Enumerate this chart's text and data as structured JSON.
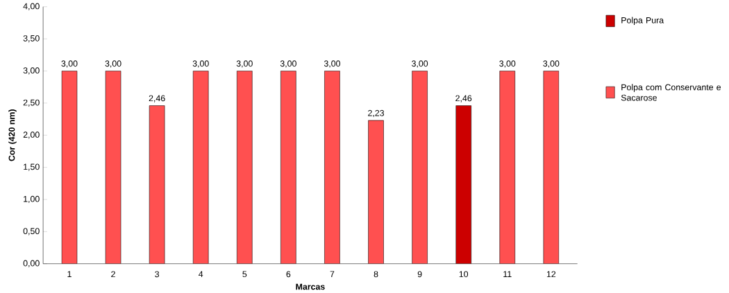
{
  "chart_data": {
    "type": "bar",
    "xlabel": "Marcas",
    "ylabel": "Cor (420 nm)",
    "categories": [
      "1",
      "2",
      "3",
      "4",
      "5",
      "6",
      "7",
      "8",
      "9",
      "10",
      "11",
      "12"
    ],
    "series": [
      {
        "name": "Polpa Pura",
        "color": "#cc0000",
        "values": [
          null,
          null,
          null,
          null,
          null,
          null,
          null,
          null,
          null,
          2.46,
          null,
          null
        ],
        "value_labels": [
          null,
          null,
          null,
          null,
          null,
          null,
          null,
          null,
          null,
          "2,46",
          null,
          null
        ]
      },
      {
        "name": "Polpa com Conservante e Sacarose",
        "color": "#ff5050",
        "values": [
          3.0,
          3.0,
          2.46,
          3.0,
          3.0,
          3.0,
          3.0,
          2.23,
          3.0,
          null,
          3.0,
          3.0
        ],
        "value_labels": [
          "3,00",
          "3,00",
          "2,46",
          "3,00",
          "3,00",
          "3,00",
          "3,00",
          "2,23",
          "3,00",
          null,
          "3,00",
          "3,00"
        ]
      }
    ],
    "ylim": [
      0,
      4
    ],
    "yticks": [
      {
        "value": 0,
        "label": "0,00"
      },
      {
        "value": 0.5,
        "label": "0,50"
      },
      {
        "value": 1,
        "label": "1,00"
      },
      {
        "value": 1.5,
        "label": "1,50"
      },
      {
        "value": 2,
        "label": "2,00"
      },
      {
        "value": 2.5,
        "label": "2,50"
      },
      {
        "value": 3,
        "label": "3,00"
      },
      {
        "value": 3.5,
        "label": "3,50"
      },
      {
        "value": 4,
        "label": "4,00"
      }
    ],
    "legend": "right"
  }
}
